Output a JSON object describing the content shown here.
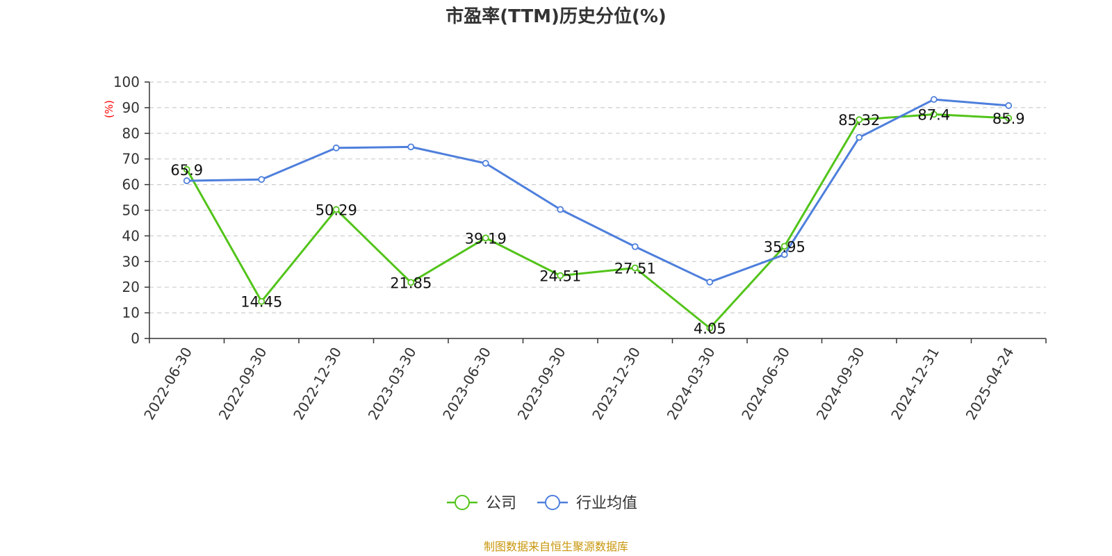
{
  "chart_data": {
    "type": "line",
    "title": "市盈率(TTM)历史分位(%)",
    "ylabel": "(%)",
    "xlabel": "",
    "ylim": [
      0,
      100
    ],
    "yticks": [
      0,
      10,
      20,
      30,
      40,
      50,
      60,
      70,
      80,
      90,
      100
    ],
    "grid": true,
    "legend_position": "bottom",
    "categories": [
      "2022-06-30",
      "2022-09-30",
      "2022-12-30",
      "2023-03-30",
      "2023-06-30",
      "2023-09-30",
      "2023-12-30",
      "2024-03-30",
      "2024-06-30",
      "2024-09-30",
      "2024-12-31",
      "2025-04-24"
    ],
    "series": [
      {
        "name": "公司",
        "color": "#52c41a",
        "values": [
          65.9,
          14.45,
          50.29,
          21.85,
          39.19,
          24.51,
          27.51,
          4.05,
          35.95,
          85.32,
          87.4,
          85.9
        ],
        "labels": [
          "65.9",
          "14.45",
          "50.29",
          "21.85",
          "39.19",
          "24.51",
          "27.51",
          "4.05",
          "35.95",
          "85.32",
          "87.4",
          "85.9"
        ],
        "show_labels": true
      },
      {
        "name": "行业均值",
        "color": "#4e7fdc",
        "values": [
          61.5,
          62.0,
          74.3,
          74.7,
          68.3,
          50.3,
          35.8,
          22.0,
          32.7,
          78.4,
          93.2,
          90.8
        ],
        "show_labels": false
      }
    ]
  },
  "source_note": "制图数据来自恒生聚源数据库"
}
